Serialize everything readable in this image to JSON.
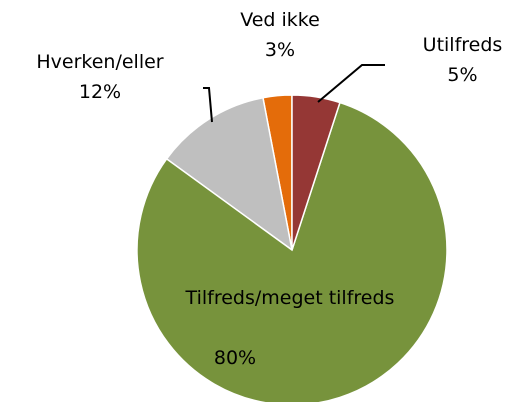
{
  "chart_data": {
    "type": "pie",
    "categories": [
      "Utilfreds",
      "Tilfreds/meget tilfreds",
      "Hverken/eller",
      "Ved ikke"
    ],
    "values": [
      5,
      80,
      12,
      3
    ],
    "value_labels": [
      "5%",
      "80%",
      "12%",
      "3%"
    ],
    "colors": [
      "#953735",
      "#77933c",
      "#bfbfbf",
      "#e46c0a"
    ]
  }
}
